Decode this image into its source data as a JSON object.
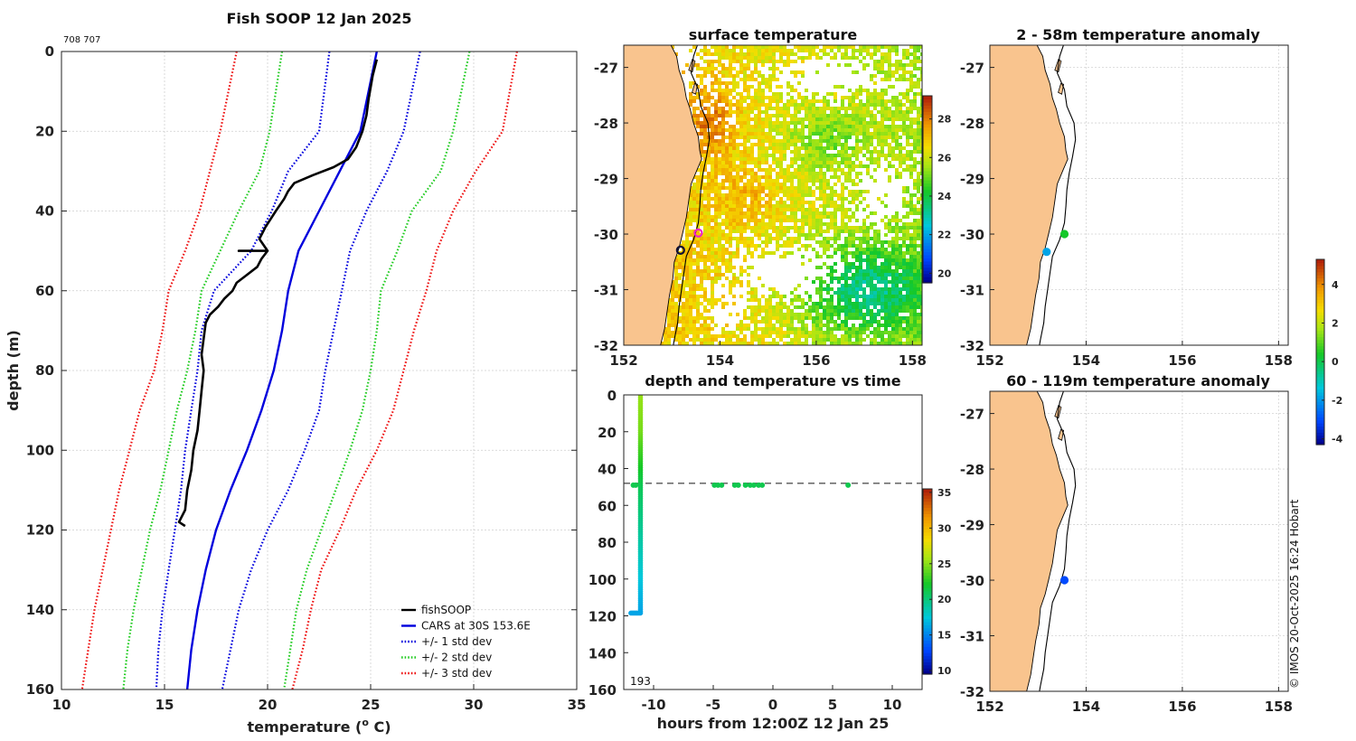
{
  "chart_data": [
    {
      "type": "line",
      "title": "Fish SOOP 12 Jan 2025",
      "id_label": "708 707",
      "xlabel": "temperature (°C)",
      "xlabel_main": "temperature (",
      "xlabel_sup": "o",
      "xlabel_end": " C)",
      "ylabel": "depth (m)",
      "xlim": [
        10,
        35
      ],
      "ylim": [
        0,
        160
      ],
      "xticks": [
        10,
        15,
        20,
        25,
        30,
        35
      ],
      "yticks": [
        0,
        20,
        40,
        60,
        80,
        100,
        120,
        140,
        160
      ],
      "series": [
        {
          "name": "fishSOOP",
          "color": "#000000",
          "style": "solid",
          "points": [
            [
              25.3,
              2
            ],
            [
              25.1,
              6
            ],
            [
              24.9,
              12
            ],
            [
              24.8,
              16
            ],
            [
              24.6,
              20
            ],
            [
              24.3,
              24
            ],
            [
              23.9,
              27
            ],
            [
              23.2,
              29
            ],
            [
              22.2,
              31
            ],
            [
              21.3,
              33
            ],
            [
              21.0,
              35
            ],
            [
              20.8,
              37
            ],
            [
              20.4,
              40
            ],
            [
              19.9,
              44
            ],
            [
              19.6,
              47
            ],
            [
              20.0,
              50
            ],
            [
              18.6,
              50
            ],
            [
              20.0,
              50
            ],
            [
              19.7,
              52
            ],
            [
              19.5,
              54
            ],
            [
              19.0,
              56
            ],
            [
              18.5,
              58
            ],
            [
              18.3,
              60
            ],
            [
              17.9,
              62
            ],
            [
              17.6,
              64
            ],
            [
              17.2,
              66
            ],
            [
              17.0,
              68
            ],
            [
              16.9,
              72
            ],
            [
              16.8,
              76
            ],
            [
              16.9,
              80
            ],
            [
              16.8,
              85
            ],
            [
              16.7,
              90
            ],
            [
              16.6,
              95
            ],
            [
              16.4,
              100
            ],
            [
              16.3,
              105
            ],
            [
              16.1,
              110
            ],
            [
              16.0,
              115
            ],
            [
              15.7,
              118
            ],
            [
              16.0,
              119
            ]
          ]
        },
        {
          "name": "CARS at 30S 153.6E",
          "color": "#0000dd",
          "style": "solid",
          "points": [
            [
              25.3,
              0
            ],
            [
              24.5,
              20
            ],
            [
              23.5,
              30
            ],
            [
              22.5,
              40
            ],
            [
              21.5,
              50
            ],
            [
              21.0,
              60
            ],
            [
              20.7,
              70
            ],
            [
              20.3,
              80
            ],
            [
              19.7,
              90
            ],
            [
              19.0,
              100
            ],
            [
              18.2,
              110
            ],
            [
              17.5,
              120
            ],
            [
              17.0,
              130
            ],
            [
              16.6,
              140
            ],
            [
              16.3,
              150
            ],
            [
              16.1,
              160
            ]
          ]
        },
        {
          "name": "+/- 1 std dev",
          "color": "#0000dd",
          "style": "dotted",
          "points": [
            [
              23.0,
              0
            ],
            [
              22.5,
              20
            ],
            [
              21.0,
              30
            ],
            [
              20.2,
              40
            ],
            [
              19.2,
              50
            ],
            [
              17.4,
              60
            ],
            [
              16.8,
              70
            ],
            [
              16.6,
              80
            ],
            [
              16.3,
              90
            ],
            [
              16.0,
              100
            ],
            [
              15.8,
              110
            ],
            [
              15.5,
              120
            ],
            [
              15.2,
              130
            ],
            [
              14.9,
              140
            ],
            [
              14.7,
              150
            ],
            [
              14.6,
              160
            ]
          ]
        },
        {
          "name": "+/- 1 std dev",
          "color": "#0000dd",
          "style": "dotted",
          "points": [
            [
              27.4,
              0
            ],
            [
              26.6,
              20
            ],
            [
              25.8,
              30
            ],
            [
              24.8,
              40
            ],
            [
              24.0,
              50
            ],
            [
              23.6,
              60
            ],
            [
              23.2,
              70
            ],
            [
              22.8,
              80
            ],
            [
              22.5,
              90
            ],
            [
              21.8,
              100
            ],
            [
              21.0,
              110
            ],
            [
              20.0,
              120
            ],
            [
              19.2,
              130
            ],
            [
              18.6,
              140
            ],
            [
              18.2,
              150
            ],
            [
              17.8,
              160
            ]
          ]
        },
        {
          "name": "+/- 2 std dev",
          "color": "#22cc22",
          "style": "dotted",
          "points": [
            [
              20.7,
              0
            ],
            [
              20.1,
              20
            ],
            [
              19.6,
              30
            ],
            [
              18.6,
              40
            ],
            [
              17.7,
              50
            ],
            [
              16.8,
              60
            ],
            [
              16.5,
              70
            ],
            [
              16.1,
              80
            ],
            [
              15.6,
              90
            ],
            [
              15.2,
              100
            ],
            [
              14.8,
              110
            ],
            [
              14.3,
              120
            ],
            [
              13.9,
              130
            ],
            [
              13.5,
              140
            ],
            [
              13.2,
              150
            ],
            [
              13.0,
              160
            ]
          ]
        },
        {
          "name": "+/- 2 std dev",
          "color": "#22cc22",
          "style": "dotted",
          "points": [
            [
              29.8,
              0
            ],
            [
              29.0,
              20
            ],
            [
              28.4,
              30
            ],
            [
              27.0,
              40
            ],
            [
              26.3,
              50
            ],
            [
              25.5,
              60
            ],
            [
              25.3,
              70
            ],
            [
              25.0,
              80
            ],
            [
              24.6,
              90
            ],
            [
              24.0,
              100
            ],
            [
              23.3,
              110
            ],
            [
              22.6,
              120
            ],
            [
              21.9,
              130
            ],
            [
              21.4,
              140
            ],
            [
              21.1,
              150
            ],
            [
              20.8,
              160
            ]
          ]
        },
        {
          "name": "+/- 3 std dev",
          "color": "#ee1111",
          "style": "dotted",
          "points": [
            [
              18.5,
              0
            ],
            [
              17.7,
              20
            ],
            [
              16.7,
              40
            ],
            [
              16.0,
              50
            ],
            [
              15.2,
              60
            ],
            [
              14.9,
              70
            ],
            [
              14.5,
              80
            ],
            [
              13.8,
              90
            ],
            [
              13.3,
              100
            ],
            [
              12.8,
              110
            ],
            [
              12.4,
              120
            ],
            [
              12.0,
              130
            ],
            [
              11.6,
              140
            ],
            [
              11.3,
              150
            ],
            [
              11.0,
              160
            ]
          ]
        },
        {
          "name": "+/- 3 std dev",
          "color": "#ee1111",
          "style": "dotted",
          "points": [
            [
              32.1,
              0
            ],
            [
              31.4,
              20
            ],
            [
              30.1,
              30
            ],
            [
              29.0,
              40
            ],
            [
              28.2,
              50
            ],
            [
              27.7,
              60
            ],
            [
              27.1,
              70
            ],
            [
              26.6,
              80
            ],
            [
              26.1,
              90
            ],
            [
              25.3,
              100
            ],
            [
              24.3,
              110
            ],
            [
              23.5,
              120
            ],
            [
              22.6,
              130
            ],
            [
              22.1,
              140
            ],
            [
              21.7,
              150
            ],
            [
              21.2,
              160
            ]
          ]
        }
      ],
      "legend": {
        "placement": "bottom-right",
        "entries": [
          {
            "label": "fishSOOP",
            "color": "#000000",
            "style": "solid"
          },
          {
            "label": "CARS at 30S 153.6E",
            "color": "#0000dd",
            "style": "solid"
          },
          {
            "label": "+/- 1 std dev",
            "color": "#0000dd",
            "style": "dotted"
          },
          {
            "label": "+/- 2 std dev",
            "color": "#22cc22",
            "style": "dotted"
          },
          {
            "label": "+/- 3 std dev",
            "color": "#ee1111",
            "style": "dotted"
          }
        ]
      }
    },
    {
      "type": "heatmap",
      "title": "surface temperature",
      "xlim": [
        152,
        158.2
      ],
      "ylim": [
        -32,
        -26.6
      ],
      "xticks": [
        152,
        154,
        156,
        158
      ],
      "yticks": [
        -27,
        -28,
        -29,
        -30,
        -31,
        -32
      ],
      "colorbar": {
        "min": 19.5,
        "max": 29.2,
        "ticks": [
          20,
          22,
          24,
          26,
          28
        ]
      },
      "markers": [
        {
          "name": "current position",
          "lon": 153.55,
          "lat": -29.98,
          "color": "#ee22cc",
          "shape": "open-circle"
        },
        {
          "name": "coastal station",
          "lon": 153.18,
          "lat": -30.29,
          "color": "#111133",
          "shape": "open-circle"
        }
      ]
    },
    {
      "type": "scatter",
      "title": "depth and temperature vs time",
      "xlabel": "hours from 12:00Z 12 Jan 25",
      "xlim": [
        -12.5,
        12.5
      ],
      "ylim": [
        0,
        160
      ],
      "xticks": [
        -10,
        -5,
        0,
        5,
        10
      ],
      "yticks": [
        0,
        20,
        40,
        60,
        80,
        100,
        120,
        140,
        160
      ],
      "reference_depth": 48,
      "count_label": "193",
      "colorbar": {
        "min": 9.5,
        "max": 35.5,
        "ticks": [
          10,
          15,
          20,
          25,
          30,
          35
        ]
      },
      "profile": {
        "hours": -11.1,
        "depth_from": 0,
        "depth_to": 118
      },
      "bottom_run": {
        "hours_from": -11.9,
        "hours_to": -11.1,
        "depth": 118.5,
        "temp": 16
      },
      "points": [
        {
          "hours": -11.7,
          "depth": 49,
          "temp": 21
        },
        {
          "hours": -11.5,
          "depth": 49,
          "temp": 21
        },
        {
          "hours": -4.9,
          "depth": 49,
          "temp": 21
        },
        {
          "hours": -4.6,
          "depth": 49,
          "temp": 21
        },
        {
          "hours": -4.3,
          "depth": 49,
          "temp": 21
        },
        {
          "hours": -3.2,
          "depth": 49,
          "temp": 21
        },
        {
          "hours": -2.9,
          "depth": 49,
          "temp": 21
        },
        {
          "hours": -2.3,
          "depth": 49,
          "temp": 21
        },
        {
          "hours": -1.9,
          "depth": 49,
          "temp": 21
        },
        {
          "hours": -1.6,
          "depth": 49,
          "temp": 21
        },
        {
          "hours": -1.2,
          "depth": 49,
          "temp": 21
        },
        {
          "hours": -0.9,
          "depth": 49,
          "temp": 21
        },
        {
          "hours": 6.3,
          "depth": 49,
          "temp": 21
        }
      ]
    },
    {
      "type": "scatter",
      "title": "2 - 58m temperature anomaly",
      "xlim": [
        152,
        158.2
      ],
      "ylim": [
        -32,
        -26.6
      ],
      "xticks": [
        152,
        154,
        156,
        158
      ],
      "yticks": [
        -27,
        -28,
        -29,
        -30,
        -31,
        -32
      ],
      "points": [
        {
          "lon": 153.55,
          "lat": -30.0,
          "anomaly": 0.3
        },
        {
          "lon": 153.18,
          "lat": -30.32,
          "anomaly": -1.9
        }
      ]
    },
    {
      "type": "scatter",
      "title": "60 - 119m temperature anomaly",
      "xlim": [
        152,
        158.2
      ],
      "ylim": [
        -32,
        -26.6
      ],
      "xticks": [
        152,
        154,
        156,
        158
      ],
      "yticks": [
        -27,
        -28,
        -29,
        -30,
        -31,
        -32
      ],
      "points": [
        {
          "lon": 153.55,
          "lat": -30.0,
          "anomaly": -3.1
        }
      ],
      "colorbar": {
        "min": -4.3,
        "max": 5.3,
        "ticks": [
          -4,
          -2,
          0,
          2,
          4
        ]
      }
    }
  ],
  "credit": "© IMOS 20-Oct-2025 16:24 Hobart",
  "colors": {
    "land": "#f9c48e",
    "grid": "#cccccc",
    "dash": "#555555"
  }
}
